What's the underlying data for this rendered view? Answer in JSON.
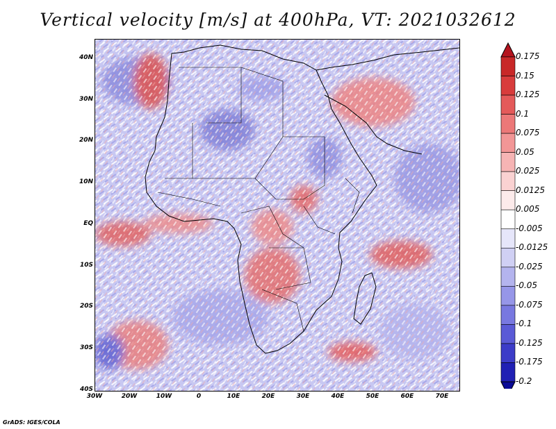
{
  "title": "Vertical velocity [m/s] at 400hPa, VT: 2021032612",
  "footer": "GrADS: IGES/COLA",
  "map": {
    "lon_range": [
      -30,
      75
    ],
    "lat_range": [
      -40,
      45
    ],
    "x_tick_labels": [
      "30W",
      "20W",
      "10W",
      "0",
      "10E",
      "20E",
      "30E",
      "40E",
      "50E",
      "60E",
      "70E"
    ],
    "y_tick_labels": [
      "40N",
      "30N",
      "20N",
      "10N",
      "EQ",
      "10S",
      "20S",
      "30S",
      "40S"
    ]
  },
  "colorbar": {
    "labels": [
      "0.175",
      "0.15",
      "0.125",
      "0.1",
      "0.075",
      "0.05",
      "0.025",
      "0.0125",
      "0.005",
      "-0.005",
      "-0.0125",
      "-0.025",
      "-0.05",
      "-0.075",
      "-0.1",
      "-0.125",
      "-0.175",
      "-0.2"
    ],
    "colors": [
      "#b4141e",
      "#c82828",
      "#d83c3c",
      "#e45a5a",
      "#ec7878",
      "#f29696",
      "#f6b4b4",
      "#fad2d2",
      "#fcebeb",
      "#ffffff",
      "#e6e6fa",
      "#d0d0f4",
      "#b4b4ee",
      "#9696e8",
      "#7878e0",
      "#5a5ad6",
      "#3c3cc8",
      "#2020b4",
      "#0a0a96"
    ]
  }
}
